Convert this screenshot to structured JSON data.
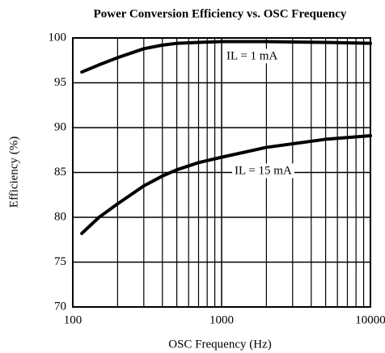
{
  "chart_data": {
    "type": "line",
    "title": "Power Conversion Efficiency vs. OSC Frequency",
    "xlabel": "OSC Frequency (Hz)",
    "ylabel": "Efficiency (%)",
    "xscale": "log",
    "xlim": [
      100,
      10000
    ],
    "xticks": [
      100,
      1000,
      10000
    ],
    "xticks_minor": [
      200,
      300,
      400,
      500,
      600,
      700,
      800,
      900,
      2000,
      3000,
      4000,
      5000,
      6000,
      7000,
      8000,
      9000
    ],
    "ylim": [
      70,
      100
    ],
    "yticks": [
      70,
      75,
      80,
      85,
      90,
      95,
      100
    ],
    "grid": true,
    "series": [
      {
        "name": "IL = 1 mA",
        "color": "#000000",
        "x": [
          115,
          150,
          200,
          300,
          400,
          500,
          700,
          1000,
          2000,
          5000,
          10000
        ],
        "values": [
          96.2,
          97.0,
          97.8,
          98.8,
          99.2,
          99.4,
          99.5,
          99.6,
          99.6,
          99.5,
          99.4
        ]
      },
      {
        "name": "IL = 15 mA",
        "color": "#000000",
        "x": [
          115,
          150,
          200,
          300,
          400,
          500,
          700,
          1000,
          2000,
          5000,
          10000
        ],
        "values": [
          78.2,
          80.0,
          81.5,
          83.5,
          84.6,
          85.3,
          86.1,
          86.7,
          87.8,
          88.7,
          89.1
        ]
      }
    ]
  }
}
